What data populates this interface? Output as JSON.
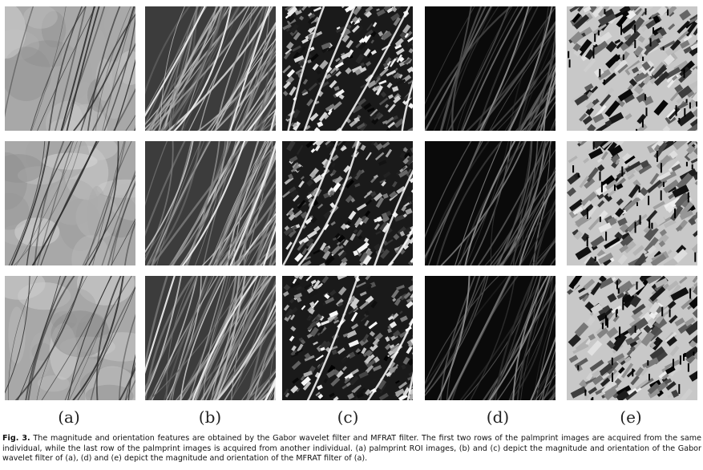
{
  "figure": {
    "column_labels": [
      "(a)",
      "(b)",
      "(c)",
      "(d)",
      "(e)"
    ],
    "columns": [
      {
        "id": "a",
        "style": "roi",
        "background": "#a8a8a8",
        "line_color": "#2a2a2a"
      },
      {
        "id": "b",
        "style": "gabor-magnitude",
        "background": "#3c3c3c",
        "line_color": "#d0d0d0"
      },
      {
        "id": "c",
        "style": "gabor-orientation",
        "background": "#1a1a1a",
        "line_color": "#f0f0f0"
      },
      {
        "id": "d",
        "style": "mfrat-magnitude",
        "background": "#0a0a0a",
        "line_color": "#8a8a8a"
      },
      {
        "id": "e",
        "style": "mfrat-orientation",
        "background": "#c8c8c8",
        "line_color": "#3a3a3a"
      }
    ],
    "rows": 3
  },
  "caption": {
    "label": "Fig. 3.",
    "text": " The magnitude and orientation features are obtained by the Gabor wavelet filter and MFRAT filter. The first two rows of the palmprint images are acquired from the same individual, while the last row of the palmprint images is acquired from another individual. (a) palmprint ROI images, (b) and (c) depict the magnitude and orientation of the Gabor wavelet filter of (a), (d) and (e) depict the magnitude and orientation of the MFRAT filter of (a)."
  }
}
